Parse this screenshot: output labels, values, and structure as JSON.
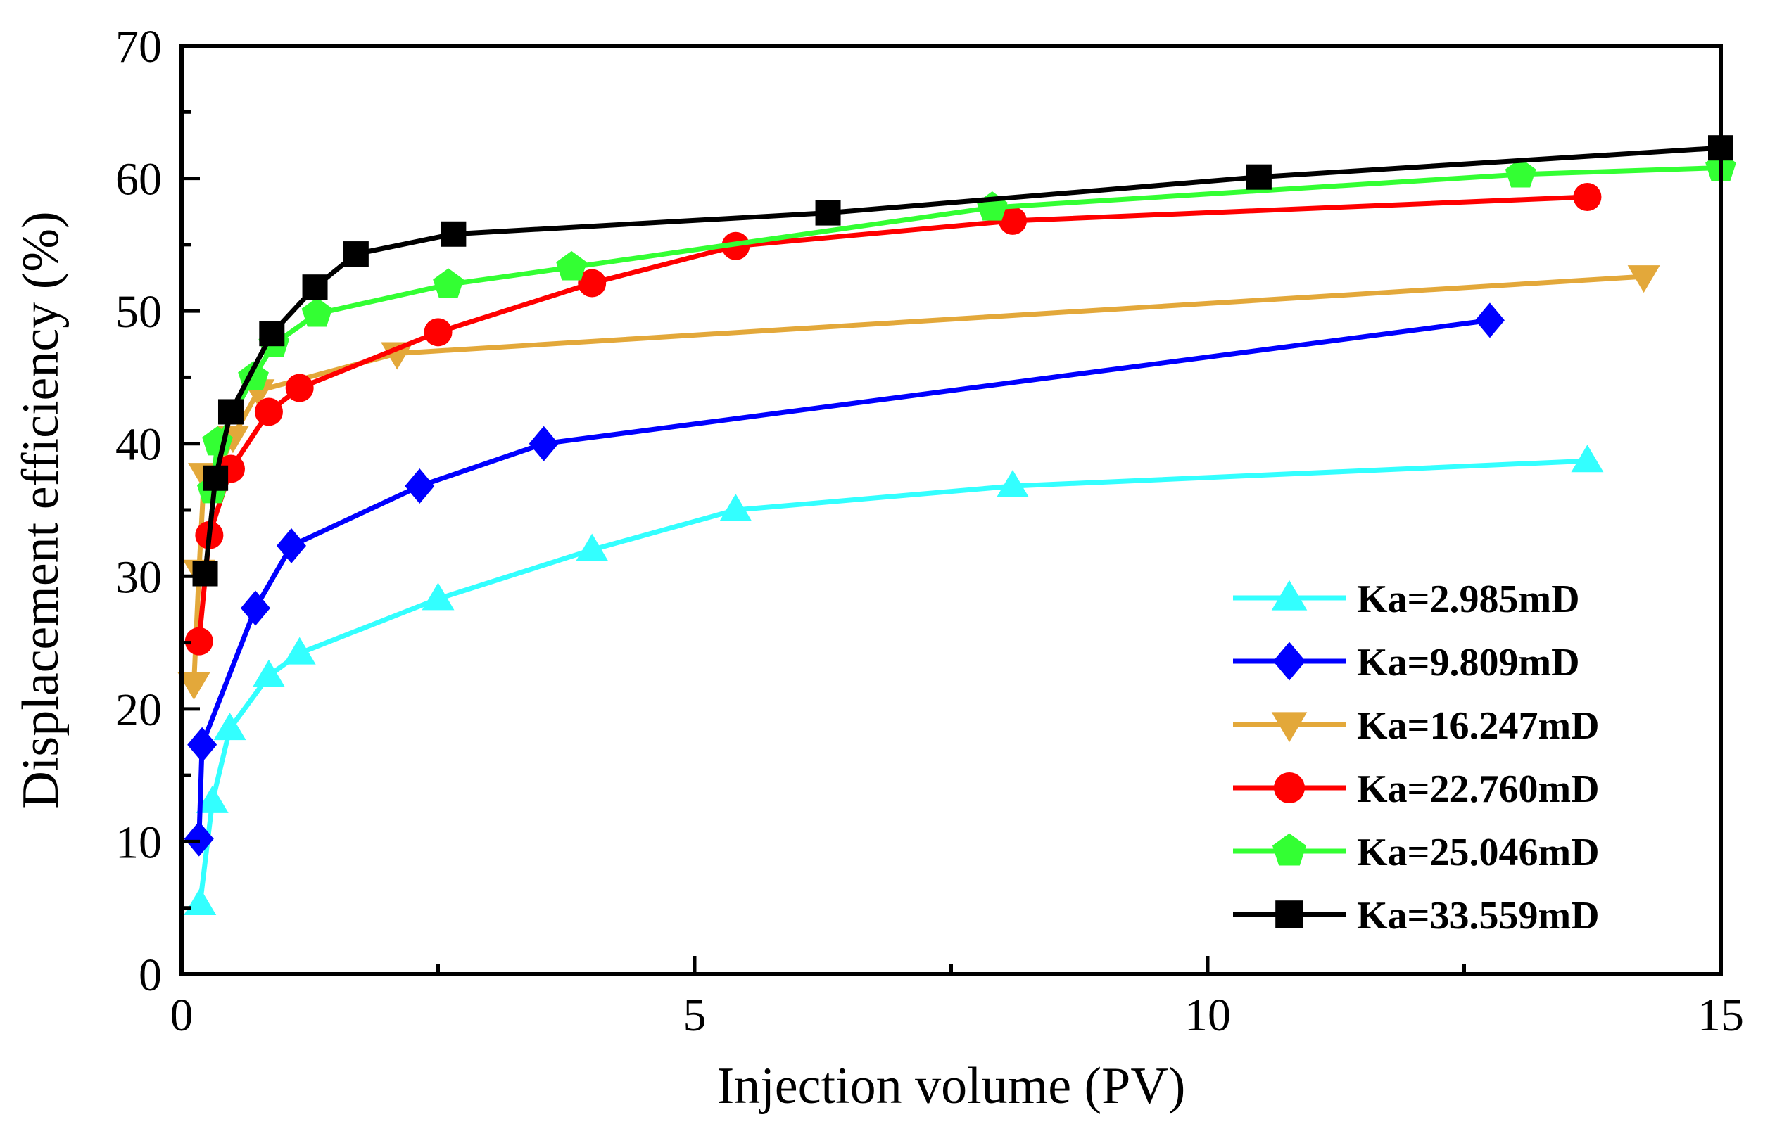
{
  "chart_data": {
    "type": "line",
    "title": "",
    "xlabel": "Injection volume (PV)",
    "ylabel": "Displacement efficiency (%)",
    "xlim": [
      0,
      15
    ],
    "ylim": [
      0,
      70
    ],
    "xticks": [
      0,
      5,
      10,
      15
    ],
    "yticks": [
      0,
      10,
      20,
      30,
      40,
      50,
      60,
      70
    ],
    "x_minor_step": 2.5,
    "y_minor_step": 5,
    "legend_position": "bottom-right",
    "series": [
      {
        "name": "Ka=2.985mD",
        "color": "#33FFFF",
        "marker": "triangle-up",
        "x": [
          0.18,
          0.3,
          0.47,
          0.85,
          1.15,
          2.5,
          4.0,
          5.4,
          8.1,
          13.7
        ],
        "y": [
          5.3,
          13.0,
          18.5,
          22.5,
          24.2,
          28.3,
          32.0,
          35.0,
          36.8,
          38.7
        ]
      },
      {
        "name": "Ka=9.809mD",
        "color": "#0000FF",
        "marker": "diamond",
        "x": [
          0.17,
          0.2,
          0.72,
          1.07,
          2.32,
          3.53,
          12.75
        ],
        "y": [
          10.2,
          17.3,
          27.6,
          32.3,
          36.8,
          40.0,
          49.3
        ]
      },
      {
        "name": "Ka=16.247mD",
        "color": "#E3A83A",
        "marker": "triangle-down",
        "x": [
          0.12,
          0.17,
          0.22,
          0.3,
          0.5,
          0.75,
          2.1,
          14.25
        ],
        "y": [
          21.9,
          30.4,
          37.7,
          37.0,
          40.5,
          44.0,
          46.8,
          52.6
        ]
      },
      {
        "name": "Ka=22.760mD",
        "color": "#FF0000",
        "marker": "circle",
        "x": [
          0.17,
          0.27,
          0.48,
          0.85,
          1.15,
          2.5,
          4.0,
          5.4,
          8.1,
          13.7
        ],
        "y": [
          25.1,
          33.1,
          38.1,
          42.4,
          44.2,
          48.4,
          52.1,
          54.9,
          56.8,
          58.6
        ]
      },
      {
        "name": "Ka=25.046mD",
        "color": "#33FF33",
        "marker": "pentagon",
        "x": [
          0.3,
          0.35,
          0.7,
          0.9,
          1.32,
          2.6,
          3.8,
          7.9,
          13.05,
          15.0
        ],
        "y": [
          36.5,
          40.1,
          45.0,
          47.5,
          49.8,
          52.0,
          53.3,
          57.8,
          60.3,
          60.8
        ]
      },
      {
        "name": "Ka=33.559mD",
        "color": "#000000",
        "marker": "square",
        "x": [
          0.23,
          0.33,
          0.48,
          0.88,
          1.3,
          1.7,
          2.65,
          6.3,
          10.5,
          15.0
        ],
        "y": [
          30.2,
          37.4,
          42.4,
          48.3,
          51.8,
          54.3,
          55.8,
          57.4,
          60.1,
          62.3
        ]
      }
    ]
  }
}
